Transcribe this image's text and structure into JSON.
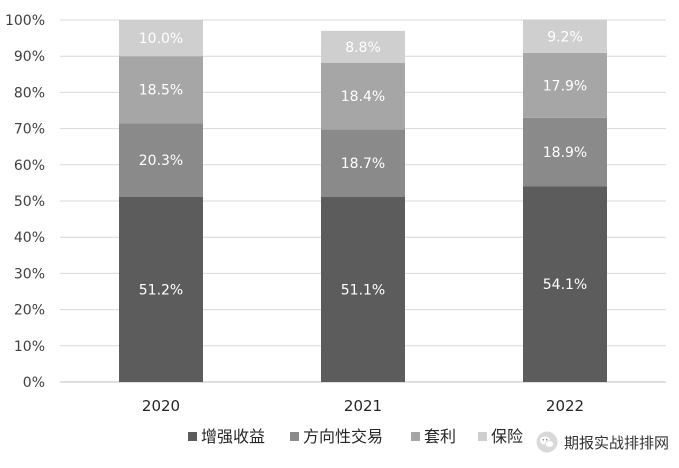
{
  "chart_data": {
    "type": "bar",
    "stacked": true,
    "categories": [
      "2020",
      "2021",
      "2022"
    ],
    "series": [
      {
        "name": "增强收益",
        "values": [
          51.2,
          51.1,
          54.1
        ],
        "labels": [
          "51.2%",
          "51.1%",
          "54.1%"
        ],
        "color": "#5c5c5c",
        "label_color": "#ffffff"
      },
      {
        "name": "方向性交易",
        "values": [
          20.3,
          18.7,
          18.9
        ],
        "labels": [
          "20.3%",
          "18.7%",
          "18.9%"
        ],
        "color": "#8a8a8a",
        "label_color": "#ffffff"
      },
      {
        "name": "套利",
        "values": [
          18.5,
          18.4,
          17.9
        ],
        "labels": [
          "18.5%",
          "18.4%",
          "17.9%"
        ],
        "color": "#a6a6a6",
        "label_color": "#ffffff"
      },
      {
        "name": "保险",
        "values": [
          10.0,
          8.8,
          9.2
        ],
        "labels": [
          "10.0%",
          "8.8%",
          "9.2%"
        ],
        "color": "#cfcfcf",
        "label_color": "#ffffff"
      }
    ],
    "ylim": [
      0,
      100
    ],
    "yticks": [
      "0%",
      "10%",
      "20%",
      "30%",
      "40%",
      "50%",
      "60%",
      "70%",
      "80%",
      "90%",
      "100%"
    ],
    "grid": true,
    "legend_position": "bottom",
    "title": "",
    "xlabel": "",
    "ylabel": ""
  },
  "watermark": {
    "text": "期报实战排排网",
    "icon": "wechat-icon"
  }
}
